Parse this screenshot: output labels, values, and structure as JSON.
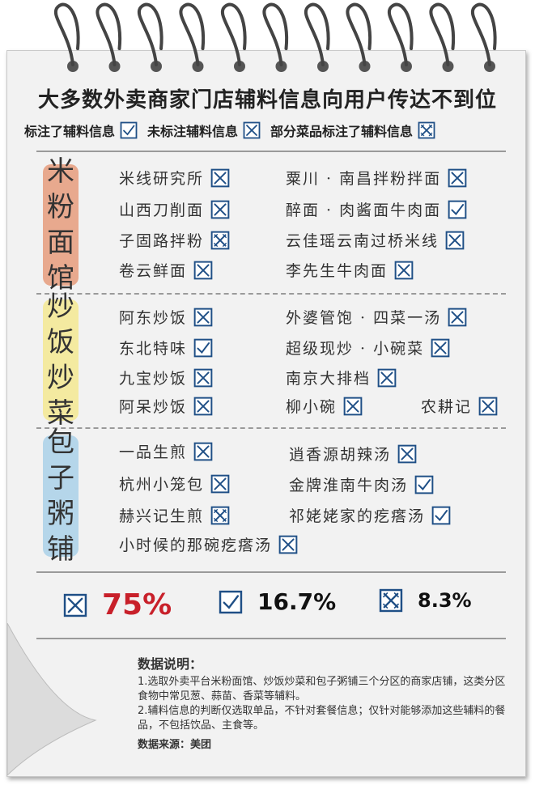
{
  "title": "大多数外卖商家门店辅料信息向用户传达不到位",
  "legend": [
    {
      "label": "标注了辅料信息",
      "icon": "check-box-icon"
    },
    {
      "label": "未标注辅料信息",
      "icon": "cross-box-icon"
    },
    {
      "label": "部分菜品标注了辅料信息",
      "icon": "partial-box-icon"
    }
  ],
  "categories": [
    {
      "name": "米粉面馆",
      "chars": [
        "米",
        "粉",
        "面",
        "馆"
      ],
      "color": "#e8a98e",
      "shops": [
        {
          "name": "米线研究所",
          "status": "cross"
        },
        {
          "name": "粟川 · 南昌拌粉拌面",
          "status": "cross"
        },
        {
          "name": "山西刀削面",
          "status": "cross"
        },
        {
          "name": "醉面 · 肉酱面牛肉面",
          "status": "check"
        },
        {
          "name": "子固路拌粉",
          "status": "partial"
        },
        {
          "name": "云佳瑶云南过桥米线",
          "status": "cross"
        },
        {
          "name": "卷云鲜面",
          "status": "cross"
        },
        {
          "name": "李先生牛肉面",
          "status": "cross"
        }
      ]
    },
    {
      "name": "炒饭炒菜",
      "chars": [
        "炒",
        "饭",
        "炒",
        "菜"
      ],
      "color": "#f4eaa0",
      "shops": [
        {
          "name": "阿东炒饭",
          "status": "cross"
        },
        {
          "name": "外婆管饱 · 四菜一汤",
          "status": "cross"
        },
        {
          "name": "东北特味",
          "status": "check"
        },
        {
          "name": "超级现炒 · 小碗菜",
          "status": "cross"
        },
        {
          "name": "九宝炒饭",
          "status": "cross"
        },
        {
          "name": "南京大排档",
          "status": "cross"
        },
        {
          "name": "阿呆炒饭",
          "status": "cross"
        },
        {
          "name": "柳小碗",
          "status": "cross"
        },
        {
          "name": "农耕记",
          "status": "cross"
        }
      ]
    },
    {
      "name": "包子粥铺",
      "chars": [
        "包",
        "子",
        "粥",
        "铺"
      ],
      "color": "#b5d6ea",
      "shops": [
        {
          "name": "一品生煎",
          "status": "cross"
        },
        {
          "name": "逍香源胡辣汤",
          "status": "cross"
        },
        {
          "name": "杭州小笼包",
          "status": "cross"
        },
        {
          "name": "金牌淮南牛肉汤",
          "status": "check"
        },
        {
          "name": "赫兴记生煎",
          "status": "partial"
        },
        {
          "name": "祁姥姥家的疙瘩汤",
          "status": "check"
        },
        {
          "name": "小时候的那碗疙瘩汤",
          "status": "cross"
        }
      ]
    }
  ],
  "stats": [
    {
      "icon": "cross",
      "value": "75%",
      "color": "#c8202a"
    },
    {
      "icon": "check",
      "value": "16.7%",
      "color": "#111111"
    },
    {
      "icon": "partial",
      "value": "8.3%",
      "color": "#111111"
    }
  ],
  "notes": {
    "heading": "数据说明：",
    "items": [
      "1.选取外卖平台米粉面馆、炒饭炒菜和包子粥铺三个分区的商家店铺，这类分区食物中常见葱、蒜苗、香菜等辅料。",
      "2.辅料信息的判断仅选取单品，不针对套餐信息；仅针对能够添加这些辅料的餐品，不包括饮品、主食等。"
    ],
    "source": "数据来源：美团"
  },
  "colors": {
    "box": "#1f4f86",
    "text": "#222222",
    "divider": "#9a9a9a"
  }
}
